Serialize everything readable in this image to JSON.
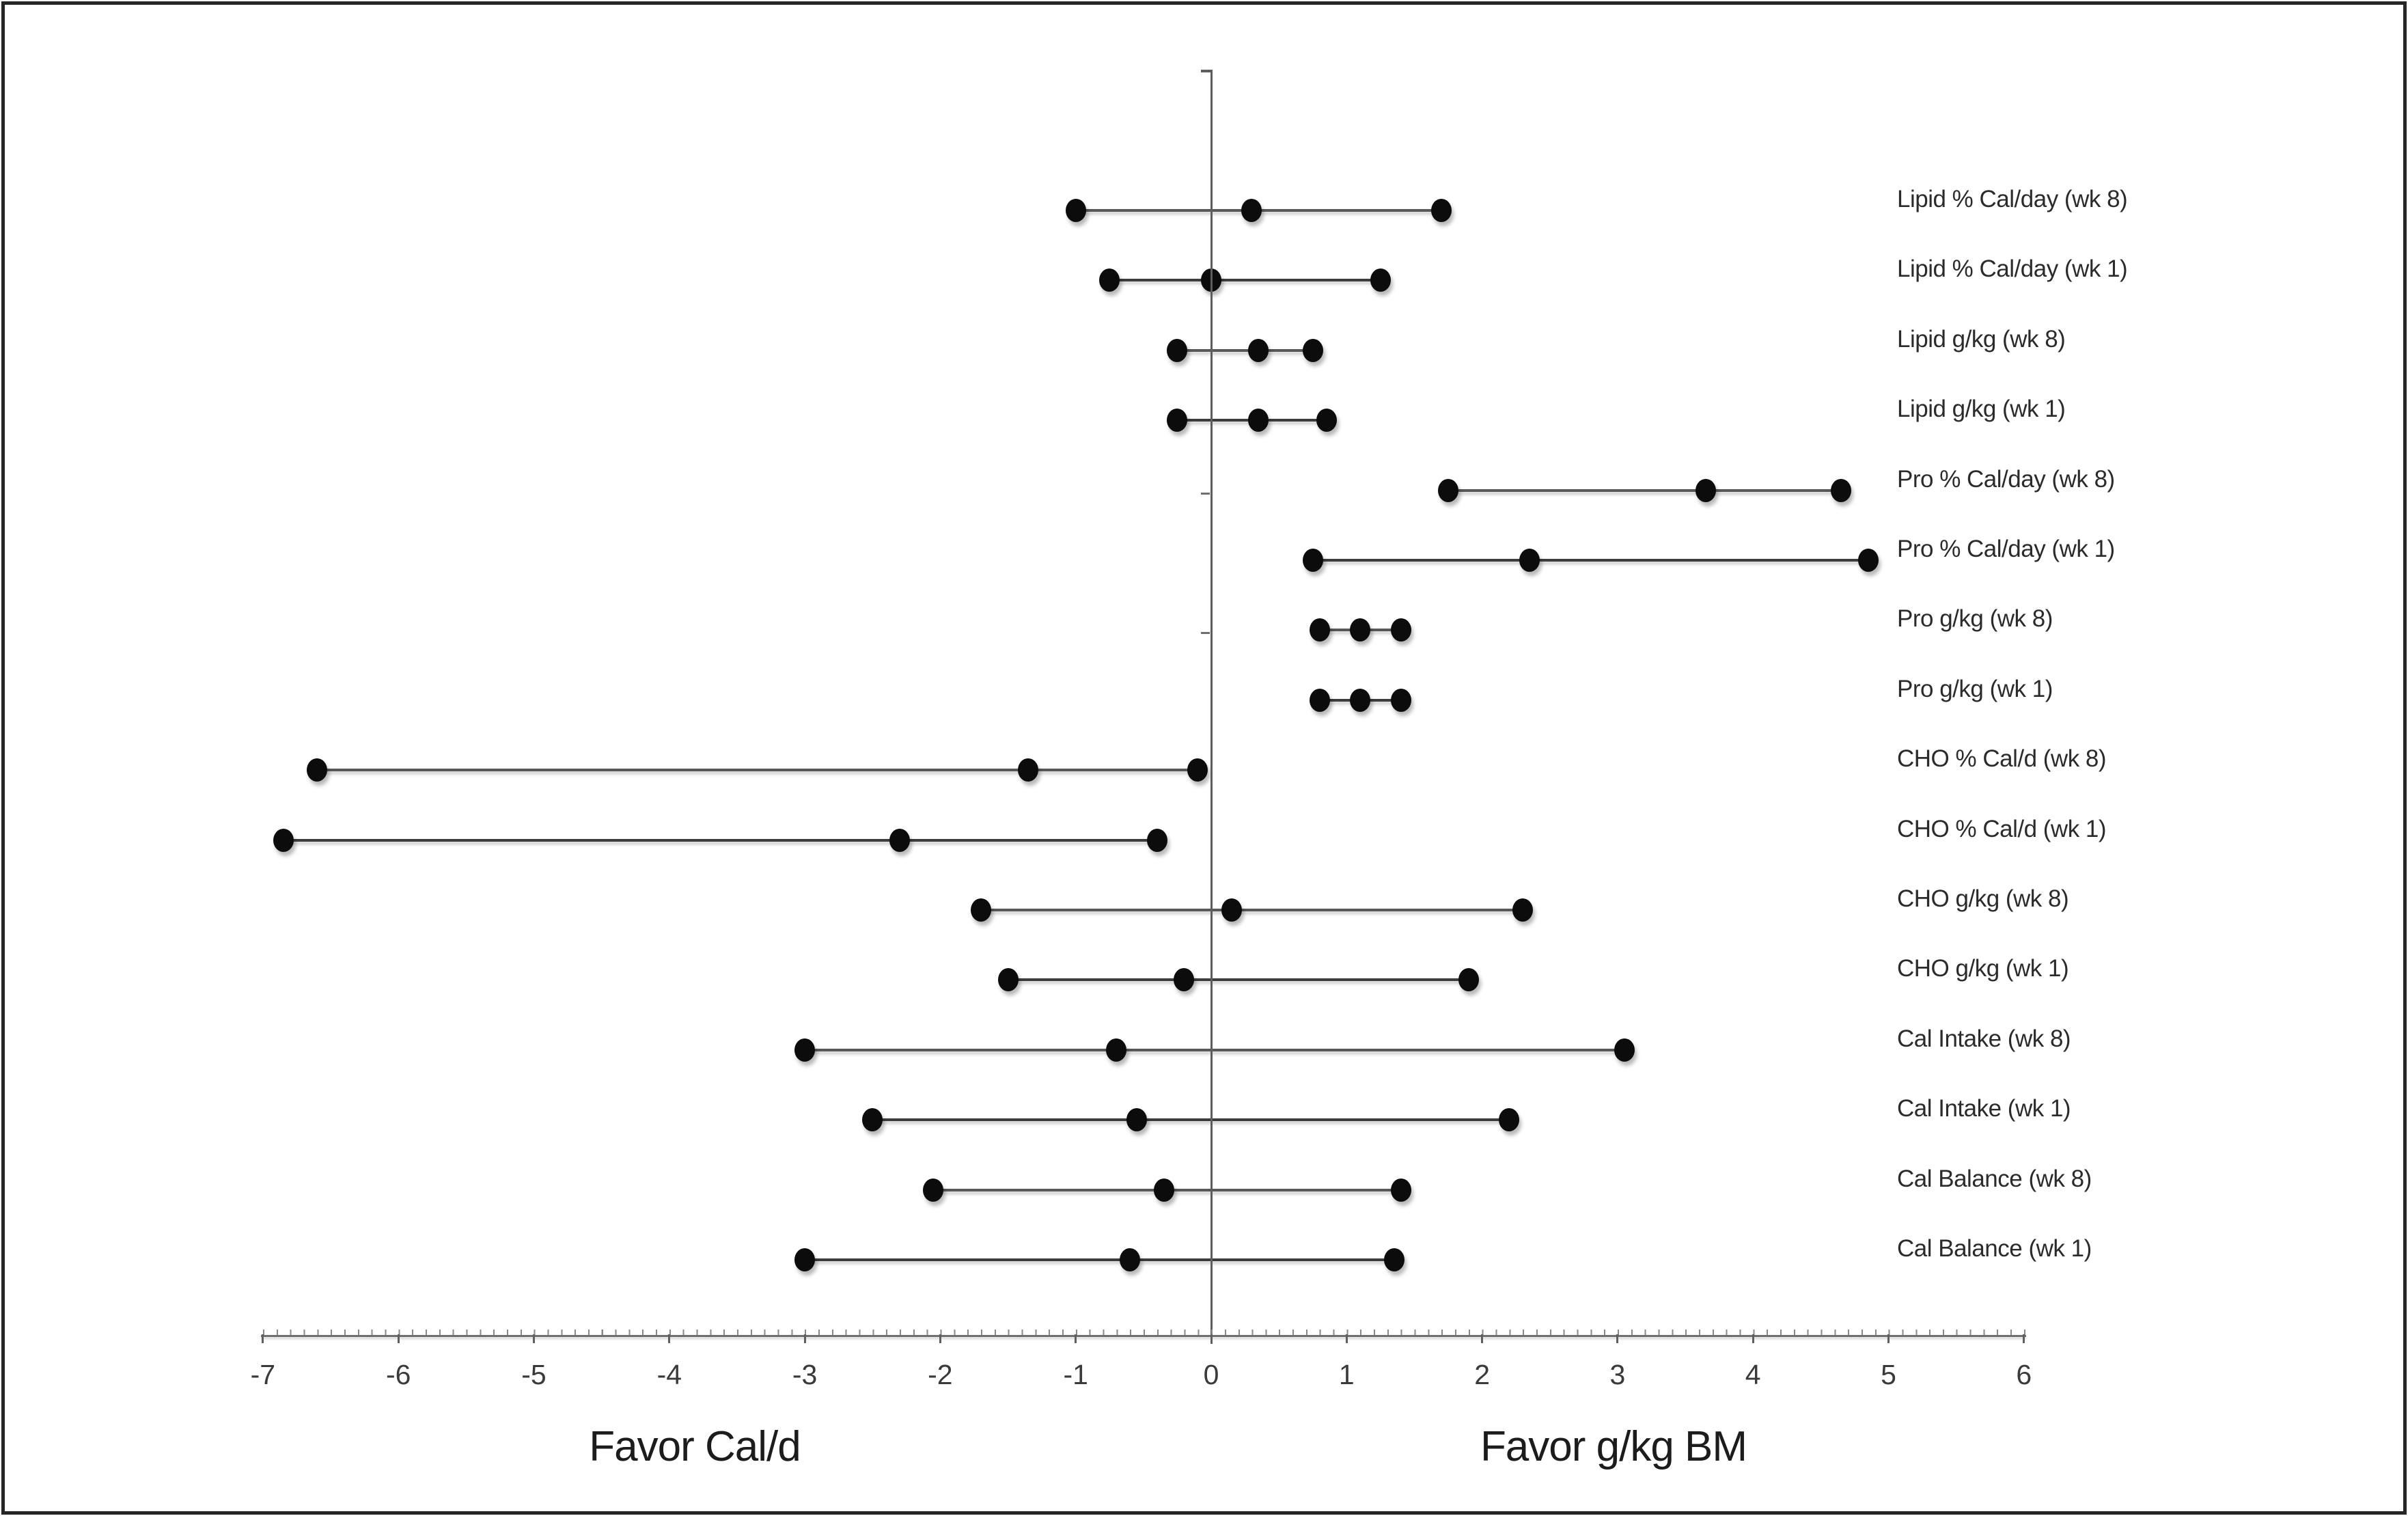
{
  "chart_data": {
    "type": "scatter",
    "subtype": "forest-dot-range",
    "title": "",
    "xlabel_left": "Favor Cal/d",
    "xlabel_right": "Favor g/kg BM",
    "xlim": [
      -7,
      6
    ],
    "xticks": [
      -7,
      -6,
      -5,
      -4,
      -3,
      -2,
      -1,
      0,
      1,
      2,
      3,
      4,
      5,
      6
    ],
    "minor_tick_step": 0.1,
    "grid": "off",
    "legend": "none",
    "zero_reference_line": true,
    "rows": [
      {
        "label": "Lipid % Cal/day (wk 8)",
        "week": "wk 8",
        "low": -1.0,
        "mid": 0.3,
        "high": 1.7
      },
      {
        "label": "Lipid % Cal/day (wk 1)",
        "week": "wk 1",
        "low": -0.75,
        "mid": 0.0,
        "high": 1.25
      },
      {
        "label": "Lipid g/kg (wk 8)",
        "week": "wk 8",
        "low": -0.25,
        "mid": 0.35,
        "high": 0.75
      },
      {
        "label": "Lipid g/kg (wk 1)",
        "week": "wk 1",
        "low": -0.25,
        "mid": 0.35,
        "high": 0.85
      },
      {
        "label": "Pro % Cal/day (wk 8)",
        "week": "wk 8",
        "low": 1.75,
        "mid": 3.65,
        "high": 4.65
      },
      {
        "label": "Pro % Cal/day (wk 1)",
        "week": "wk 1",
        "low": 0.75,
        "mid": 2.35,
        "high": 4.85
      },
      {
        "label": "Pro g/kg (wk 8)",
        "week": "wk 8",
        "low": 0.8,
        "mid": 1.1,
        "high": 1.4
      },
      {
        "label": "Pro g/kg (wk 1)",
        "week": "wk 1",
        "low": 0.8,
        "mid": 1.1,
        "high": 1.4
      },
      {
        "label": "CHO % Cal/d (wk 8)",
        "week": "wk 8",
        "low": -6.6,
        "mid": -1.35,
        "high": -0.1
      },
      {
        "label": "CHO % Cal/d (wk 1)",
        "week": "wk 1",
        "low": -6.85,
        "mid": -2.3,
        "high": -0.4
      },
      {
        "label": "CHO g/kg (wk 8)",
        "week": "wk 8",
        "low": -1.7,
        "mid": 0.15,
        "high": 2.3
      },
      {
        "label": "CHO g/kg (wk 1)",
        "week": "wk 1",
        "low": -1.5,
        "mid": -0.2,
        "high": 1.9
      },
      {
        "label": "Cal Intake (wk 8)",
        "week": "wk 8",
        "low": -3.0,
        "mid": -0.7,
        "high": 3.05
      },
      {
        "label": "Cal Intake (wk 1)",
        "week": "wk 1",
        "low": -2.5,
        "mid": -0.55,
        "high": 2.2
      },
      {
        "label": "Cal Balance (wk 8)",
        "week": "wk 8",
        "low": -2.05,
        "mid": -0.35,
        "high": 1.4
      },
      {
        "label": "Cal Balance (wk 1)",
        "week": "wk 1",
        "low": -3.0,
        "mid": -0.6,
        "high": 1.35
      }
    ],
    "colors": {
      "marker": "#0c0c0c",
      "line_wk8": "#585858",
      "line_wk1": "#3d3d3d",
      "axis": "#6f6f6f",
      "text": "#2b2b2b",
      "background": "#ffffff",
      "border": "#262626"
    }
  }
}
